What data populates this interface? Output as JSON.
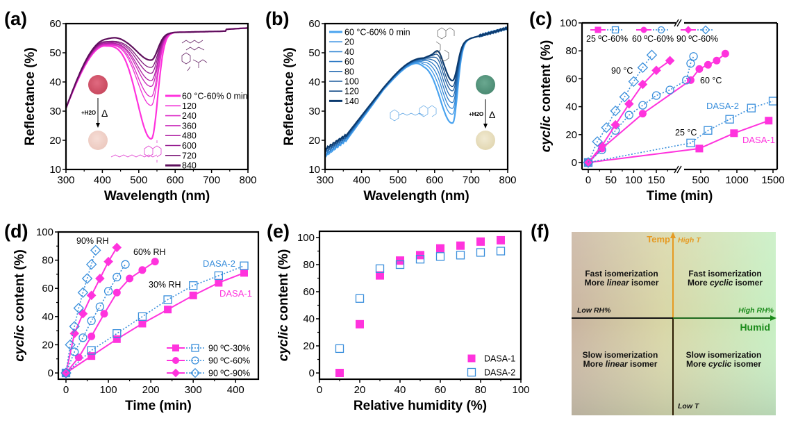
{
  "panel_labels": [
    "(a)",
    "(b)",
    "(c)",
    "(d)",
    "(e)",
    "(f)"
  ],
  "colors": {
    "dasa1": "#ff33dd",
    "dasa2": "#3a8fdc",
    "axis": "#000000",
    "temp_axis": "#e69a22",
    "humid_axis": "#1a8a1a"
  },
  "chart_data": [
    {
      "id": "a",
      "type": "line",
      "title": "",
      "xlabel": "Wavelength (nm)",
      "ylabel": "Reflectance (%)",
      "xlim": [
        300,
        800
      ],
      "ylim": [
        10,
        60
      ],
      "xticks": [
        300,
        400,
        500,
        600,
        700,
        800
      ],
      "yticks": [
        10,
        20,
        30,
        40,
        50,
        60
      ],
      "legend_position": "center-right",
      "annotations": [
        "+H2O",
        "Δ"
      ],
      "series": [
        {
          "name": "60 °C-60% 0 min",
          "color": "#ff33dd",
          "min_value": 20.5,
          "peak_value": 52.5
        },
        {
          "name": "120",
          "color": "#f02fd6",
          "min_value": 32,
          "peak_value": 52.7
        },
        {
          "name": "240",
          "color": "#dd2bc8",
          "min_value": 35,
          "peak_value": 52.9
        },
        {
          "name": "360",
          "color": "#c827b8",
          "min_value": 38.5,
          "peak_value": 53.1
        },
        {
          "name": "480",
          "color": "#b023a5",
          "min_value": 40.5,
          "peak_value": 53.3
        },
        {
          "name": "600",
          "color": "#961d90",
          "min_value": 43,
          "peak_value": 53.6
        },
        {
          "name": "720",
          "color": "#7c1877",
          "min_value": 45,
          "peak_value": 53.9
        },
        {
          "name": "840",
          "color": "#5e0f5c",
          "min_value": 47.5,
          "peak_value": 54.3
        }
      ],
      "shape": {
        "x": [
          300,
          350,
          400,
          450,
          500,
          530,
          560,
          600,
          650,
          700,
          750,
          800
        ],
        "base": [
          31,
          44,
          52.5,
          0,
          0,
          0,
          0,
          57,
          57,
          57,
          57.3,
          58.5
        ]
      }
    },
    {
      "id": "b",
      "type": "line",
      "title": "",
      "xlabel": "Wavelength (nm)",
      "ylabel": "Reflectance (%)",
      "xlim": [
        300,
        800
      ],
      "ylim": [
        10,
        60
      ],
      "xticks": [
        300,
        400,
        500,
        600,
        700,
        800
      ],
      "yticks": [
        10,
        20,
        30,
        40,
        50,
        60
      ],
      "legend_position": "top-left",
      "annotations": [
        "+H2O",
        "Δ"
      ],
      "series": [
        {
          "name": "60 °C-60% 0 min",
          "color": "#4aa3ef",
          "min_value": 26,
          "peak_value": 47
        },
        {
          "name": "20",
          "color": "#3e95e3",
          "min_value": 29,
          "peak_value": 47.2
        },
        {
          "name": "40",
          "color": "#3487d4",
          "min_value": 31,
          "peak_value": 47.4
        },
        {
          "name": "60",
          "color": "#2b78c3",
          "min_value": 33,
          "peak_value": 47.6
        },
        {
          "name": "80",
          "color": "#2369b0",
          "min_value": 35,
          "peak_value": 47.8
        },
        {
          "name": "100",
          "color": "#1b5a9c",
          "min_value": 37,
          "peak_value": 48
        },
        {
          "name": "120",
          "color": "#134a86",
          "min_value": 38.5,
          "peak_value": 48.1
        },
        {
          "name": "140",
          "color": "#0b3a6e",
          "min_value": 40.5,
          "peak_value": 48.2
        }
      ]
    },
    {
      "id": "c",
      "type": "line",
      "title": "",
      "xlabel": "Time (min)",
      "ylabel": "cyclic content (%)",
      "xlim": [
        0,
        1500
      ],
      "axis_break": [
        180,
        400
      ],
      "ylim": [
        0,
        100
      ],
      "xticks": [
        0,
        50,
        100,
        150,
        500,
        1000,
        1500
      ],
      "yticks": [
        0,
        20,
        40,
        60,
        80,
        100
      ],
      "legend_position": "top",
      "annotations": [
        "90 °C",
        "60 °C",
        "25 °C",
        "DASA-2",
        "DASA-1"
      ],
      "legend": [
        "25 °C-60%",
        "60 °C-60%",
        "90 °C-60%"
      ],
      "series": [
        {
          "name": "DASA-1 25 °C-60%",
          "marker": "square",
          "filled": true,
          "x": [
            0,
            480,
            960,
            1440
          ],
          "y": [
            0,
            10,
            21,
            30
          ]
        },
        {
          "name": "DASA-2 25 °C-60%",
          "marker": "square",
          "filled": false,
          "x": [
            0,
            360,
            600,
            900,
            1200,
            1500
          ],
          "y": [
            0,
            14,
            23,
            31,
            39,
            44
          ]
        },
        {
          "name": "DASA-1 60 °C-60%",
          "marker": "circle",
          "filled": true,
          "x": [
            0,
            30,
            120,
            360,
            480,
            600,
            720,
            840
          ],
          "y": [
            0,
            10,
            35,
            59,
            67,
            70,
            73,
            78
          ]
        },
        {
          "name": "DASA-2 60 °C-60%",
          "marker": "circle",
          "filled": false,
          "x": [
            0,
            30,
            60,
            90,
            120,
            150,
            180,
            300,
            360,
            400
          ],
          "y": [
            0,
            9,
            23,
            34,
            41,
            48,
            52,
            59,
            71,
            76
          ]
        },
        {
          "name": "DASA-1 90 °C-60%",
          "marker": "diamond",
          "filled": true,
          "x": [
            0,
            30,
            60,
            90,
            120,
            150,
            180
          ],
          "y": [
            0,
            12,
            27,
            42,
            56,
            66,
            73
          ]
        },
        {
          "name": "DASA-2 90 °C-60%",
          "marker": "diamond",
          "filled": false,
          "x": [
            0,
            20,
            40,
            60,
            80,
            100,
            120,
            140
          ],
          "y": [
            0,
            15,
            25,
            37,
            47,
            58,
            68,
            77
          ]
        }
      ]
    },
    {
      "id": "d",
      "type": "line",
      "title": "",
      "xlabel": "Time (min)",
      "ylabel": "cyclic content (%)",
      "xlim": [
        -10,
        450
      ],
      "ylim": [
        -5,
        100
      ],
      "xticks": [
        0,
        100,
        200,
        300,
        400
      ],
      "yticks": [
        0,
        20,
        40,
        60,
        80,
        100
      ],
      "legend_position": "bottom-right",
      "annotations": [
        "90% RH",
        "60% RH",
        "30% RH",
        "DASA-2",
        "DASA-1"
      ],
      "legend": [
        "90 °C-30%",
        "90 °C-60%",
        "90 °C-90%"
      ],
      "series": [
        {
          "name": "DASA-1 90 °C-30%",
          "marker": "square",
          "filled": true,
          "x": [
            0,
            60,
            120,
            180,
            240,
            300,
            360,
            420
          ],
          "y": [
            0,
            12,
            24,
            35,
            45,
            55,
            64,
            71
          ]
        },
        {
          "name": "DASA-2 90 °C-30%",
          "marker": "square",
          "filled": false,
          "x": [
            0,
            60,
            120,
            180,
            240,
            300,
            360,
            420
          ],
          "y": [
            0,
            16,
            28,
            40,
            52,
            62,
            69,
            76
          ]
        },
        {
          "name": "DASA-1 90 °C-60%",
          "marker": "circle",
          "filled": true,
          "x": [
            0,
            30,
            60,
            90,
            120,
            150,
            180,
            210
          ],
          "y": [
            0,
            11,
            26,
            42,
            57,
            67,
            73,
            79
          ]
        },
        {
          "name": "DASA-2 90 °C-60%",
          "marker": "circle",
          "filled": false,
          "x": [
            0,
            20,
            40,
            60,
            80,
            100,
            120,
            140
          ],
          "y": [
            0,
            15,
            25,
            37,
            47,
            58,
            68,
            77
          ]
        },
        {
          "name": "DASA-1 90 °C-90%",
          "marker": "diamond",
          "filled": true,
          "x": [
            0,
            20,
            40,
            60,
            80,
            100,
            120
          ],
          "y": [
            0,
            28,
            42,
            55,
            67,
            79,
            89
          ]
        },
        {
          "name": "DASA-2 90 °C-90%",
          "marker": "diamond",
          "filled": false,
          "x": [
            0,
            10,
            20,
            30,
            40,
            50,
            60,
            70
          ],
          "y": [
            0,
            20,
            33,
            46,
            57,
            67,
            77,
            87
          ]
        }
      ]
    },
    {
      "id": "e",
      "type": "scatter",
      "title": "",
      "xlabel": "Relative humidity (%)",
      "ylabel": "cyclic content (%)",
      "xlim": [
        0,
        100
      ],
      "ylim": [
        -5,
        105
      ],
      "xticks": [
        0,
        20,
        40,
        60,
        80,
        100
      ],
      "yticks": [
        0,
        20,
        40,
        60,
        80,
        100
      ],
      "legend_position": "bottom-right",
      "series": [
        {
          "name": "DASA-1",
          "marker": "square",
          "filled": true,
          "x": [
            10,
            20,
            30,
            40,
            50,
            60,
            70,
            80,
            90
          ],
          "y": [
            0,
            36,
            72,
            83,
            87,
            92,
            94,
            97,
            98
          ]
        },
        {
          "name": "DASA-2",
          "marker": "square",
          "filled": false,
          "x": [
            10,
            20,
            30,
            40,
            50,
            60,
            70,
            80,
            90
          ],
          "y": [
            18,
            55,
            77,
            80,
            84,
            86,
            87,
            89,
            90
          ]
        }
      ]
    }
  ],
  "quadrant": {
    "y_axis_label": "Temp",
    "y_high": "High T",
    "y_low": "Low T",
    "x_axis_label": "Humid",
    "x_low": "Low RH%",
    "x_high": "High RH%",
    "quadrants": [
      {
        "pos": "top-left",
        "line1": "Fast isomerization",
        "line2_pre": "More ",
        "line2_em": "linear",
        "line2_post": " isomer"
      },
      {
        "pos": "top-right",
        "line1": "Fast isomerization",
        "line2_pre": "More ",
        "line2_em": "cyclic",
        "line2_post": " isomer"
      },
      {
        "pos": "bottom-left",
        "line1": "Slow isomerization",
        "line2_pre": "More ",
        "line2_em": "linear",
        "line2_post": " isomer"
      },
      {
        "pos": "bottom-right",
        "line1": "Slow isomerization",
        "line2_pre": "More ",
        "line2_em": "cyclic",
        "line2_post": " isomer"
      }
    ]
  },
  "photo_annotation": {
    "water": "+H2O",
    "heat": "Δ"
  }
}
